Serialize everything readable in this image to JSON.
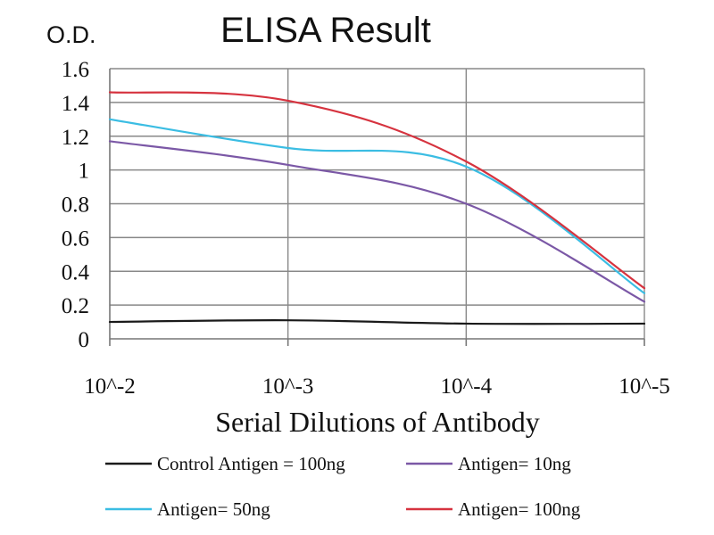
{
  "chart_data": {
    "type": "line",
    "title": "ELISA Result",
    "ylabel": "O.D.",
    "xlabel": "Serial Dilutions of Antibody",
    "categories": [
      "10^-2",
      "10^-3",
      "10^-4",
      "10^-5"
    ],
    "yticks": [
      "0",
      "0.2",
      "0.4",
      "0.6",
      "0.8",
      "1",
      "1.2",
      "1.4",
      "1.6"
    ],
    "ylim": [
      0,
      1.6
    ],
    "grid": true,
    "legend_position": "bottom",
    "series": [
      {
        "name": "Control Antigen = 100ng",
        "color": "#1a1a1a",
        "values": [
          0.1,
          0.11,
          0.09,
          0.09
        ]
      },
      {
        "name": "Antigen= 10ng",
        "color": "#7b58a6",
        "values": [
          1.17,
          1.03,
          0.8,
          0.22
        ]
      },
      {
        "name": "Antigen= 50ng",
        "color": "#3bbde3",
        "values": [
          1.3,
          1.13,
          1.02,
          0.27
        ]
      },
      {
        "name": "Antigen= 100ng",
        "color": "#d6333f",
        "values": [
          1.46,
          1.41,
          1.05,
          0.3
        ]
      }
    ]
  }
}
